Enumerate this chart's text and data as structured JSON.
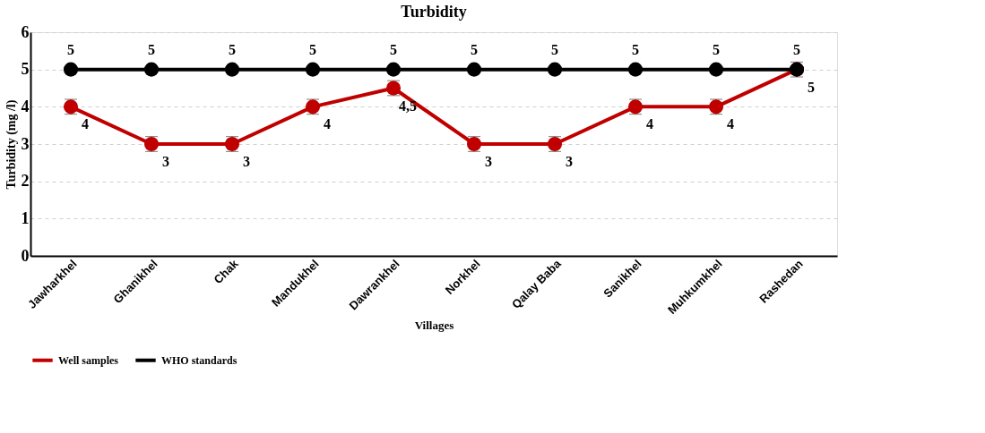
{
  "chart_data": {
    "type": "line",
    "title": "Turbidity",
    "xlabel": "Villages",
    "ylabel": "Turbidity  (mg /l)",
    "categories": [
      "Jawharkhel",
      "Ghanikhel",
      "Chak",
      "Mandukhel",
      "Dawrankhel",
      "Norkhel",
      "Qalay Baba",
      "Sanikhel",
      "Muhkumkhel",
      "Rashedan"
    ],
    "series": [
      {
        "name": "Well samples",
        "color": "#c00000",
        "values": [
          4,
          3,
          3,
          4,
          4.5,
          3,
          3,
          4,
          4,
          5
        ],
        "errors": [
          0.2,
          0.2,
          0.2,
          0.2,
          0.2,
          0.2,
          0.2,
          0.2,
          0.2,
          0.2
        ],
        "value_labels": [
          "4",
          "3",
          "3",
          "4",
          "4,5",
          "3",
          "3",
          "4",
          "4",
          "5"
        ]
      },
      {
        "name": "WHO standards",
        "color": "#000000",
        "values": [
          5,
          5,
          5,
          5,
          5,
          5,
          5,
          5,
          5,
          5
        ],
        "value_labels": [
          "5",
          "5",
          "5",
          "5",
          "5",
          "5",
          "5",
          "5",
          "5",
          "5"
        ]
      }
    ],
    "ylim": [
      0,
      6
    ],
    "yticks": [
      0,
      1,
      2,
      3,
      4,
      5,
      6
    ],
    "grid": "y",
    "legend": "bottom",
    "marker": "circle",
    "line_style": "solid"
  }
}
